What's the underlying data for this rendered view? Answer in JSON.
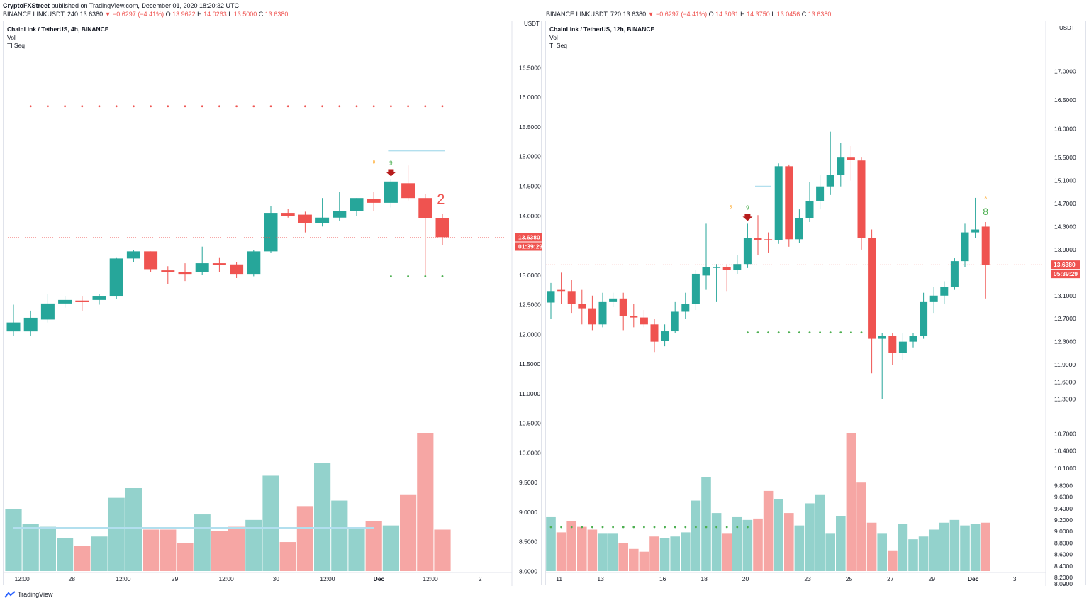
{
  "header": {
    "author": "CryptoFXStreet",
    "published": " published on TradingView.com, December 01, 2020 18:20:32 UTC",
    "left_quote": {
      "symbol": "BINANCE:LINKUSDT, 240",
      "price": "13.6380",
      "change": "▼ −0.6297 (−4.41%)",
      "o": "13.9622",
      "h": "14.0263",
      "l": "13.5000",
      "c": "13.6380"
    },
    "right_quote": {
      "symbol": "BINANCE:LINKUSDT, 720",
      "price": "13.6380",
      "change": "▼ −0.6297 (−4.41%)",
      "o": "14.3031",
      "h": "14.3750",
      "l": "13.0456",
      "c": "13.6380"
    }
  },
  "footer": {
    "brand": "TradingView"
  },
  "colors": {
    "up": "#26a69a",
    "down": "#ef5350",
    "vol_up": "#93d2cc",
    "vol_down": "#f6a6a4",
    "axis_text": "#131722"
  },
  "chart_data": [
    {
      "type": "candlestick",
      "title": "ChainLink / TetherUS, 4h, BINANCE",
      "indicators": [
        "Vol",
        "TI Seq"
      ],
      "currency": "USDT",
      "ylim": [
        7.85,
        16.9
      ],
      "y_ticks": [
        "16.5000",
        "16.0000",
        "15.5000",
        "15.0000",
        "14.5000",
        "14.0000",
        "13.5000",
        "13.0000",
        "12.5000",
        "12.0000",
        "11.5000",
        "11.0000",
        "10.5000",
        "10.0000",
        "9.5000",
        "9.0000",
        "8.5000",
        "8.0000"
      ],
      "x_ticks": [
        {
          "label": "12:00",
          "i": 0.5
        },
        {
          "label": "28",
          "i": 3.4
        },
        {
          "label": "12:00",
          "i": 6.4
        },
        {
          "label": "29",
          "i": 9.4
        },
        {
          "label": "12:00",
          "i": 12.4
        },
        {
          "label": "30",
          "i": 15.3
        },
        {
          "label": "12:00",
          "i": 18.3
        },
        {
          "label": "Dec",
          "i": 21.3
        },
        {
          "label": "12:00",
          "i": 24.3
        },
        {
          "label": "2",
          "i": 27.2
        }
      ],
      "last_price": "13.6380",
      "countdown": "01:39:29",
      "last_price_value": 13.638,
      "candles": [
        {
          "o": 12.05,
          "h": 12.5,
          "l": 11.98,
          "c": 12.2
        },
        {
          "o": 12.05,
          "h": 12.4,
          "l": 11.97,
          "c": 12.28
        },
        {
          "o": 12.25,
          "h": 12.68,
          "l": 12.2,
          "c": 12.52
        },
        {
          "o": 12.52,
          "h": 12.65,
          "l": 12.45,
          "c": 12.58
        },
        {
          "o": 12.57,
          "h": 12.65,
          "l": 12.4,
          "c": 12.56
        },
        {
          "o": 12.58,
          "h": 12.68,
          "l": 12.5,
          "c": 12.65
        },
        {
          "o": 12.65,
          "h": 13.3,
          "l": 12.6,
          "c": 13.28
        },
        {
          "o": 13.28,
          "h": 13.42,
          "l": 13.22,
          "c": 13.4
        },
        {
          "o": 13.4,
          "h": 13.4,
          "l": 13.05,
          "c": 13.1
        },
        {
          "o": 13.08,
          "h": 13.15,
          "l": 12.85,
          "c": 13.05
        },
        {
          "o": 13.05,
          "h": 13.2,
          "l": 12.9,
          "c": 13.02
        },
        {
          "o": 13.05,
          "h": 13.48,
          "l": 13.0,
          "c": 13.2
        },
        {
          "o": 13.2,
          "h": 13.3,
          "l": 13.05,
          "c": 13.17
        },
        {
          "o": 13.18,
          "h": 13.22,
          "l": 12.95,
          "c": 13.02
        },
        {
          "o": 13.02,
          "h": 13.42,
          "l": 12.98,
          "c": 13.4
        },
        {
          "o": 13.4,
          "h": 14.17,
          "l": 13.38,
          "c": 14.05
        },
        {
          "o": 14.05,
          "h": 14.12,
          "l": 13.97,
          "c": 14.0
        },
        {
          "o": 14.02,
          "h": 14.07,
          "l": 13.72,
          "c": 13.88
        },
        {
          "o": 13.88,
          "h": 14.3,
          "l": 13.82,
          "c": 13.97
        },
        {
          "o": 13.97,
          "h": 14.4,
          "l": 13.92,
          "c": 14.08
        },
        {
          "o": 14.08,
          "h": 14.3,
          "l": 14.0,
          "c": 14.3
        },
        {
          "o": 14.28,
          "h": 14.4,
          "l": 14.08,
          "c": 14.22
        },
        {
          "o": 14.22,
          "h": 14.62,
          "l": 14.14,
          "c": 14.58
        },
        {
          "o": 14.55,
          "h": 14.85,
          "l": 14.26,
          "c": 14.3
        },
        {
          "o": 14.3,
          "h": 14.37,
          "l": 13.0,
          "c": 13.96
        },
        {
          "o": 13.96,
          "h": 14.03,
          "l": 13.5,
          "c": 13.64
        }
      ],
      "volume_rel": [
        0.45,
        0.34,
        0.32,
        0.24,
        0.18,
        0.25,
        0.53,
        0.6,
        0.3,
        0.3,
        0.2,
        0.41,
        0.29,
        0.32,
        0.37,
        0.69,
        0.21,
        0.47,
        0.78,
        0.51,
        0.31,
        0.36,
        0.33,
        0.55,
        1.0,
        0.3
      ],
      "seq_resistance": 15.85,
      "seq_support": 12.98,
      "seq_resist_line": 15.1,
      "seq_labels": [
        {
          "i": 22,
          "text": "9",
          "arrow": true
        },
        {
          "i": 24,
          "text": "2"
        }
      ]
    },
    {
      "type": "candlestick",
      "title": "ChainLink / TetherUS, 12h, BINANCE",
      "indicators": [
        "Vol",
        "TI Seq"
      ],
      "currency": "USDT",
      "ylim": [
        8.09,
        17.5
      ],
      "y_ticks": [
        "17.0000",
        "16.5000",
        "16.0000",
        "15.5000",
        "15.1000",
        "14.7000",
        "14.3000",
        "13.9000",
        "13.5000",
        "13.1000",
        "12.7000",
        "12.3000",
        "11.9000",
        "11.6000",
        "11.3000",
        "10.7000",
        "10.4000",
        "10.1000",
        "9.8000",
        "9.6000",
        "9.4000",
        "9.2000",
        "9.0000",
        "8.8000",
        "8.6000",
        "8.4000",
        "8.2000",
        "8.0900"
      ],
      "x_ticks": [
        {
          "label": "11",
          "i": 0.8
        },
        {
          "label": "13",
          "i": 4.8
        },
        {
          "label": "16",
          "i": 10.8
        },
        {
          "label": "18",
          "i": 14.8
        },
        {
          "label": "20",
          "i": 18.8
        },
        {
          "label": "23",
          "i": 24.8
        },
        {
          "label": "25",
          "i": 28.8
        },
        {
          "label": "27",
          "i": 32.8
        },
        {
          "label": "29",
          "i": 36.8
        },
        {
          "label": "Dec",
          "i": 40.8
        },
        {
          "label": "3",
          "i": 44.8
        }
      ],
      "last_price": "13.6380",
      "countdown": "05:39:29",
      "last_price_value": 13.638,
      "candles": [
        {
          "o": 12.98,
          "h": 13.32,
          "l": 12.7,
          "c": 13.18
        },
        {
          "o": 13.2,
          "h": 13.5,
          "l": 12.95,
          "c": 13.18
        },
        {
          "o": 13.18,
          "h": 13.38,
          "l": 12.8,
          "c": 12.95
        },
        {
          "o": 12.95,
          "h": 13.2,
          "l": 12.6,
          "c": 12.88
        },
        {
          "o": 12.88,
          "h": 13.1,
          "l": 12.5,
          "c": 12.6
        },
        {
          "o": 12.6,
          "h": 13.15,
          "l": 12.55,
          "c": 13.0
        },
        {
          "o": 13.0,
          "h": 13.15,
          "l": 12.9,
          "c": 13.05
        },
        {
          "o": 13.05,
          "h": 13.15,
          "l": 12.5,
          "c": 12.75
        },
        {
          "o": 12.75,
          "h": 12.95,
          "l": 12.55,
          "c": 12.72
        },
        {
          "o": 12.72,
          "h": 12.85,
          "l": 12.55,
          "c": 12.6
        },
        {
          "o": 12.6,
          "h": 12.7,
          "l": 12.12,
          "c": 12.3
        },
        {
          "o": 12.32,
          "h": 12.6,
          "l": 12.22,
          "c": 12.48
        },
        {
          "o": 12.48,
          "h": 13.0,
          "l": 12.45,
          "c": 12.82
        },
        {
          "o": 12.82,
          "h": 13.15,
          "l": 12.7,
          "c": 12.95
        },
        {
          "o": 12.95,
          "h": 13.55,
          "l": 12.85,
          "c": 13.48
        },
        {
          "o": 13.45,
          "h": 14.35,
          "l": 13.2,
          "c": 13.6
        },
        {
          "o": 13.6,
          "h": 13.65,
          "l": 13.0,
          "c": 13.6
        },
        {
          "o": 13.6,
          "h": 13.65,
          "l": 13.18,
          "c": 13.55
        },
        {
          "o": 13.55,
          "h": 13.8,
          "l": 13.48,
          "c": 13.65
        },
        {
          "o": 13.65,
          "h": 14.35,
          "l": 13.58,
          "c": 14.1
        },
        {
          "o": 14.1,
          "h": 14.5,
          "l": 13.8,
          "c": 14.07
        },
        {
          "o": 14.08,
          "h": 14.2,
          "l": 13.85,
          "c": 14.07
        },
        {
          "o": 14.07,
          "h": 15.4,
          "l": 14.0,
          "c": 15.35
        },
        {
          "o": 15.35,
          "h": 15.38,
          "l": 13.95,
          "c": 14.08
        },
        {
          "o": 14.08,
          "h": 14.6,
          "l": 14.02,
          "c": 14.45
        },
        {
          "o": 14.45,
          "h": 15.08,
          "l": 14.38,
          "c": 14.75
        },
        {
          "o": 14.75,
          "h": 15.2,
          "l": 14.6,
          "c": 15.0
        },
        {
          "o": 15.0,
          "h": 15.95,
          "l": 14.85,
          "c": 15.2
        },
        {
          "o": 15.2,
          "h": 15.75,
          "l": 15.0,
          "c": 15.5
        },
        {
          "o": 15.5,
          "h": 15.7,
          "l": 15.1,
          "c": 15.46
        },
        {
          "o": 15.45,
          "h": 15.5,
          "l": 13.9,
          "c": 14.1
        },
        {
          "o": 14.1,
          "h": 14.25,
          "l": 11.75,
          "c": 12.35
        },
        {
          "o": 12.35,
          "h": 12.45,
          "l": 11.3,
          "c": 12.4
        },
        {
          "o": 12.4,
          "h": 12.45,
          "l": 11.9,
          "c": 12.1
        },
        {
          "o": 12.1,
          "h": 12.45,
          "l": 11.98,
          "c": 12.3
        },
        {
          "o": 12.3,
          "h": 12.45,
          "l": 12.2,
          "c": 12.4
        },
        {
          "o": 12.4,
          "h": 13.15,
          "l": 12.35,
          "c": 13.0
        },
        {
          "o": 13.0,
          "h": 13.25,
          "l": 12.8,
          "c": 13.1
        },
        {
          "o": 13.1,
          "h": 13.35,
          "l": 12.95,
          "c": 13.25
        },
        {
          "o": 13.25,
          "h": 13.75,
          "l": 13.2,
          "c": 13.7
        },
        {
          "o": 13.7,
          "h": 14.35,
          "l": 13.6,
          "c": 14.2
        },
        {
          "o": 14.2,
          "h": 14.8,
          "l": 14.1,
          "c": 14.25
        },
        {
          "o": 14.3,
          "h": 14.38,
          "l": 13.05,
          "c": 13.64
        }
      ],
      "volume_rel": [
        0.39,
        0.28,
        0.36,
        0.32,
        0.3,
        0.27,
        0.27,
        0.2,
        0.16,
        0.14,
        0.25,
        0.24,
        0.25,
        0.28,
        0.51,
        0.68,
        0.42,
        0.27,
        0.39,
        0.37,
        0.38,
        0.58,
        0.52,
        0.42,
        0.33,
        0.49,
        0.55,
        0.27,
        0.4,
        1.0,
        0.64,
        0.35,
        0.27,
        0.15,
        0.34,
        0.23,
        0.25,
        0.3,
        0.35,
        0.37,
        0.33,
        0.34,
        0.35
      ],
      "seq_support": 12.46,
      "seq_resist_line": 15.0,
      "seq_vol_dots": true,
      "seq_labels": [
        {
          "i": 19,
          "text": "9",
          "arrow": true
        },
        {
          "i": 42,
          "text": "8"
        }
      ]
    }
  ]
}
